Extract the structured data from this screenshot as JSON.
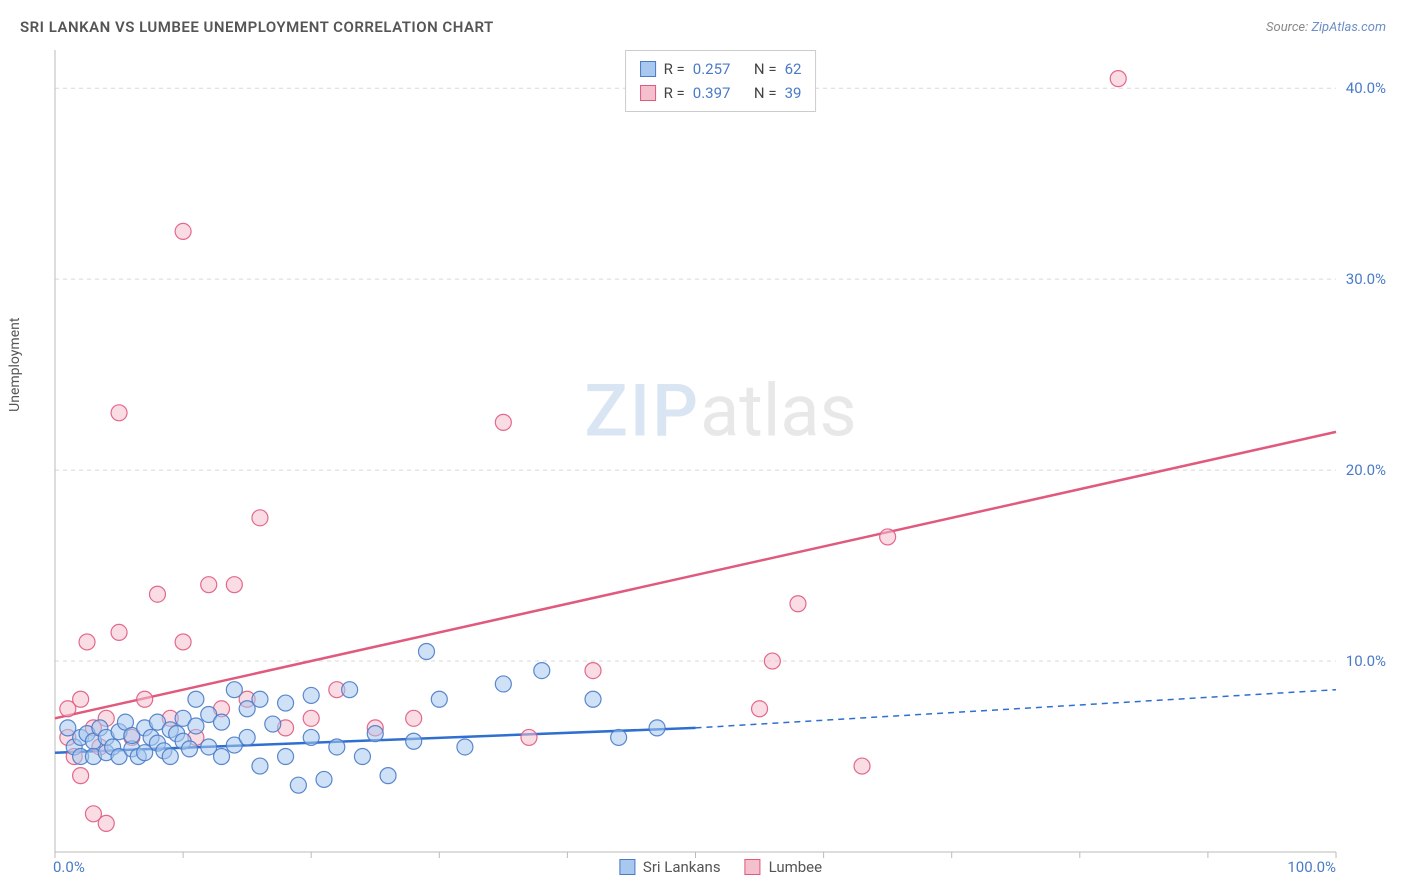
{
  "title": "SRI LANKAN VS LUMBEE UNEMPLOYMENT CORRELATION CHART",
  "source_label": "Source:",
  "source_name": "ZipAtlas.com",
  "ylabel": "Unemployment",
  "watermark_a": "ZIP",
  "watermark_b": "atlas",
  "chart": {
    "type": "scatter",
    "background_color": "#ffffff",
    "grid_color": "#d8d8d8",
    "axis_color": "#bbbbbb",
    "tick_label_color": "#4a7bc8",
    "tick_fontsize": 15,
    "xlim": [
      0,
      100
    ],
    "ylim": [
      0,
      42
    ],
    "xticks": [
      0,
      10,
      20,
      30,
      40,
      50,
      60,
      70,
      80,
      90,
      100
    ],
    "xtick_labels_shown": {
      "0": "0.0%",
      "100": "100.0%"
    },
    "yticks": [
      10,
      20,
      30,
      40
    ],
    "ytick_labels": [
      "10.0%",
      "20.0%",
      "30.0%",
      "40.0%"
    ],
    "marker_radius": 8,
    "marker_opacity": 0.55,
    "line_width": 2.5,
    "series": [
      {
        "name": "Sri Lankans",
        "color_fill": "#a8c8ef",
        "color_stroke": "#4a7bc8",
        "line_color": "#2f6fd0",
        "R": "0.257",
        "N": "62",
        "regression": {
          "x1": 0,
          "y1": 5.2,
          "x2": 50,
          "y2": 6.5,
          "x2_dash": 100,
          "y2_dash": 8.5
        },
        "points": [
          [
            1,
            6.5
          ],
          [
            1.5,
            5.5
          ],
          [
            2,
            6.0
          ],
          [
            2,
            5.0
          ],
          [
            2.5,
            6.2
          ],
          [
            3,
            5.8
          ],
          [
            3,
            5.0
          ],
          [
            3.5,
            6.5
          ],
          [
            4,
            5.2
          ],
          [
            4,
            6.0
          ],
          [
            4.5,
            5.5
          ],
          [
            5,
            6.3
          ],
          [
            5,
            5.0
          ],
          [
            5.5,
            6.8
          ],
          [
            6,
            5.4
          ],
          [
            6,
            6.1
          ],
          [
            6.5,
            5.0
          ],
          [
            7,
            6.5
          ],
          [
            7,
            5.2
          ],
          [
            7.5,
            6.0
          ],
          [
            8,
            5.7
          ],
          [
            8,
            6.8
          ],
          [
            8.5,
            5.3
          ],
          [
            9,
            6.4
          ],
          [
            9,
            5.0
          ],
          [
            9.5,
            6.2
          ],
          [
            10,
            5.8
          ],
          [
            10,
            7.0
          ],
          [
            10.5,
            5.4
          ],
          [
            11,
            6.6
          ],
          [
            11,
            8.0
          ],
          [
            12,
            5.5
          ],
          [
            12,
            7.2
          ],
          [
            13,
            5.0
          ],
          [
            13,
            6.8
          ],
          [
            14,
            8.5
          ],
          [
            14,
            5.6
          ],
          [
            15,
            7.5
          ],
          [
            15,
            6.0
          ],
          [
            16,
            8.0
          ],
          [
            16,
            4.5
          ],
          [
            17,
            6.7
          ],
          [
            18,
            5.0
          ],
          [
            18,
            7.8
          ],
          [
            19,
            3.5
          ],
          [
            20,
            8.2
          ],
          [
            20,
            6.0
          ],
          [
            21,
            3.8
          ],
          [
            22,
            5.5
          ],
          [
            23,
            8.5
          ],
          [
            24,
            5.0
          ],
          [
            25,
            6.2
          ],
          [
            26,
            4.0
          ],
          [
            28,
            5.8
          ],
          [
            29,
            10.5
          ],
          [
            30,
            8.0
          ],
          [
            32,
            5.5
          ],
          [
            35,
            8.8
          ],
          [
            38,
            9.5
          ],
          [
            42,
            8.0
          ],
          [
            44,
            6.0
          ],
          [
            47,
            6.5
          ]
        ]
      },
      {
        "name": "Lumbee",
        "color_fill": "#f5c0ce",
        "color_stroke": "#e05a7e",
        "line_color": "#e05a7e",
        "R": "0.397",
        "N": "39",
        "regression": {
          "x1": 0,
          "y1": 7.0,
          "x2": 100,
          "y2": 22.0
        },
        "points": [
          [
            1,
            6.0
          ],
          [
            1,
            7.5
          ],
          [
            1.5,
            5.0
          ],
          [
            2,
            8.0
          ],
          [
            2,
            4.0
          ],
          [
            2.5,
            11.0
          ],
          [
            3,
            6.5
          ],
          [
            3,
            2.0
          ],
          [
            3.5,
            5.5
          ],
          [
            4,
            1.5
          ],
          [
            4,
            7.0
          ],
          [
            5,
            11.5
          ],
          [
            5,
            23.0
          ],
          [
            6,
            6.0
          ],
          [
            7,
            8.0
          ],
          [
            8,
            13.5
          ],
          [
            9,
            7.0
          ],
          [
            10,
            11.0
          ],
          [
            10,
            32.5
          ],
          [
            11,
            6.0
          ],
          [
            12,
            14.0
          ],
          [
            13,
            7.5
          ],
          [
            14,
            14.0
          ],
          [
            15,
            8.0
          ],
          [
            16,
            17.5
          ],
          [
            18,
            6.5
          ],
          [
            20,
            7.0
          ],
          [
            22,
            8.5
          ],
          [
            25,
            6.5
          ],
          [
            28,
            7.0
          ],
          [
            35,
            22.5
          ],
          [
            37,
            6.0
          ],
          [
            42,
            9.5
          ],
          [
            55,
            7.5
          ],
          [
            56,
            10.0
          ],
          [
            58,
            13.0
          ],
          [
            63,
            4.5
          ],
          [
            65,
            16.5
          ],
          [
            83,
            40.5
          ]
        ]
      }
    ]
  },
  "legend_labels": {
    "R": "R =",
    "N": "N ="
  }
}
